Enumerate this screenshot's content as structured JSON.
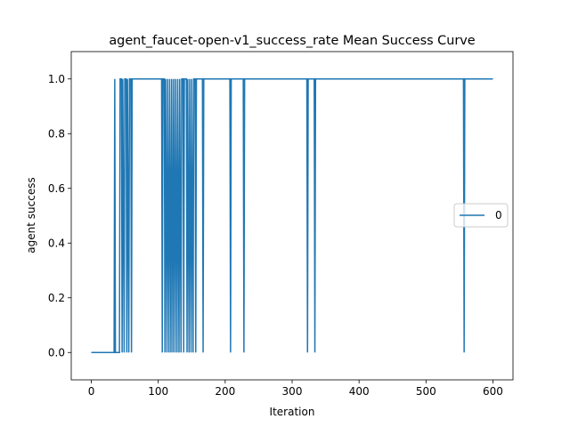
{
  "chart_data": {
    "type": "line",
    "title": "agent_faucet-open-v1_success_rate Mean Success Curve",
    "xlabel": "Iteration",
    "ylabel": "agent success",
    "x": [
      0,
      34,
      35,
      36,
      42,
      43,
      45,
      46,
      47,
      49,
      50,
      52,
      53,
      54,
      56,
      57,
      59,
      60,
      61,
      105,
      106,
      107,
      109,
      110,
      111,
      113,
      114,
      116,
      117,
      119,
      120,
      122,
      123,
      125,
      126,
      128,
      129,
      131,
      132,
      134,
      135,
      137,
      138,
      139,
      142,
      143,
      144,
      146,
      147,
      149,
      150,
      152,
      153,
      155,
      156,
      157,
      166,
      167,
      168,
      207,
      208,
      209,
      227,
      228,
      229,
      322,
      323,
      324,
      333,
      334,
      335,
      556,
      557,
      558,
      600
    ],
    "series": [
      {
        "name": "0",
        "color": "#1f77b4",
        "values": [
          0,
          0,
          1,
          0,
          0,
          1,
          1,
          0,
          1,
          0,
          1,
          1,
          0,
          1,
          0,
          1,
          1,
          0,
          1,
          1,
          0,
          1,
          1,
          0,
          1,
          0,
          1,
          0,
          1,
          0,
          1,
          0,
          1,
          0,
          1,
          0,
          1,
          0,
          1,
          0,
          1,
          1,
          0,
          1,
          1,
          0,
          1,
          0,
          1,
          0,
          1,
          0,
          1,
          1,
          0,
          1,
          1,
          0,
          1,
          1,
          0,
          1,
          1,
          0,
          1,
          1,
          0,
          1,
          1,
          0,
          1,
          1,
          0,
          1,
          1
        ]
      }
    ],
    "xlim": [
      -30,
      630
    ],
    "ylim": [
      -0.1,
      1.1
    ],
    "xticks": [
      0,
      100,
      200,
      300,
      400,
      500,
      600
    ],
    "yticks": [
      {
        "value": 0,
        "label": "0.0"
      },
      {
        "value": 0.2,
        "label": "0.2"
      },
      {
        "value": 0.4,
        "label": "0.4"
      },
      {
        "value": 0.6,
        "label": "0.6"
      },
      {
        "value": 0.8,
        "label": "0.8"
      },
      {
        "value": 1,
        "label": "1.0"
      }
    ],
    "legend": "center right"
  }
}
